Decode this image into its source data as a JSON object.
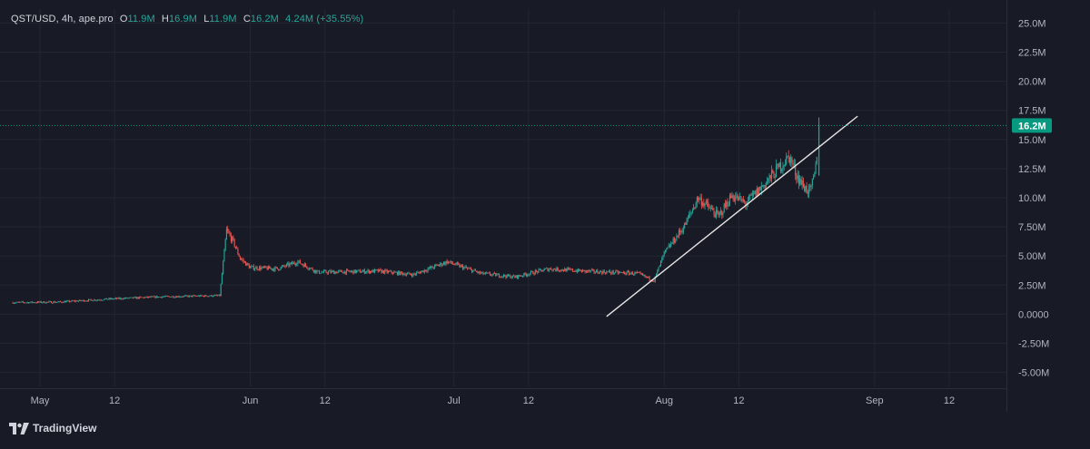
{
  "legend": {
    "symbol": "QST/USD, 4h, ape.pro",
    "open_label": "O",
    "open": "11.9M",
    "high_label": "H",
    "high": "16.9M",
    "low_label": "L",
    "low": "11.9M",
    "close_label": "C",
    "close": "16.2M",
    "change": "4.24M (+35.55%)"
  },
  "brand": {
    "name": "TradingView",
    "icon": "tradingview-logo-icon"
  },
  "colors": {
    "background": "#181b25",
    "up": "#26a69a",
    "down": "#ef5350",
    "grid": "#232632",
    "text": "#b2b5be",
    "trendline": "#e6e6e6",
    "last_price": "#089981"
  },
  "chart_data": {
    "type": "candlestick",
    "interval": "4h",
    "y_axis": {
      "ylim": [
        -6.2,
        26.2
      ],
      "ticks": [
        {
          "value": 25,
          "label": "25.0M"
        },
        {
          "value": 22.5,
          "label": "22.5M"
        },
        {
          "value": 20,
          "label": "20.0M"
        },
        {
          "value": 17.5,
          "label": "17.5M"
        },
        {
          "value": 15,
          "label": "15.0M"
        },
        {
          "value": 12.5,
          "label": "12.5M"
        },
        {
          "value": 10,
          "label": "10.0M"
        },
        {
          "value": 7.5,
          "label": "7.50M"
        },
        {
          "value": 5,
          "label": "5.00M"
        },
        {
          "value": 2.5,
          "label": "2.50M"
        },
        {
          "value": 0,
          "label": "0.0000"
        },
        {
          "value": -2.5,
          "label": "-2.50M"
        },
        {
          "value": -5,
          "label": "-5.00M"
        }
      ]
    },
    "x_axis": {
      "ticks": [
        {
          "day": 0,
          "label": "May"
        },
        {
          "day": 11,
          "label": "12"
        },
        {
          "day": 31,
          "label": "Jun"
        },
        {
          "day": 42,
          "label": "12"
        },
        {
          "day": 61,
          "label": "Jul"
        },
        {
          "day": 72,
          "label": "12"
        },
        {
          "day": 92,
          "label": "Aug"
        },
        {
          "day": 103,
          "label": "12"
        },
        {
          "day": 123,
          "label": "Sep"
        },
        {
          "day": 134,
          "label": "12"
        }
      ]
    },
    "last_price": {
      "value": 16.2,
      "label": "16.2M"
    },
    "trendline": {
      "from": {
        "day": 83.5,
        "value": -0.2
      },
      "to": {
        "day": 120.5,
        "value": 17.0
      }
    },
    "price_path": [
      [
        -4,
        1.0
      ],
      [
        3,
        1.05
      ],
      [
        10,
        1.3
      ],
      [
        18,
        1.5
      ],
      [
        26.5,
        1.6
      ],
      [
        27.5,
        7.2
      ],
      [
        28.5,
        6.2
      ],
      [
        29.5,
        4.8
      ],
      [
        31,
        4.0
      ],
      [
        35,
        3.9
      ],
      [
        38,
        4.5
      ],
      [
        41,
        3.6
      ],
      [
        50,
        3.7
      ],
      [
        55,
        3.4
      ],
      [
        60,
        4.5
      ],
      [
        65,
        3.5
      ],
      [
        70,
        3.2
      ],
      [
        75,
        3.9
      ],
      [
        80,
        3.7
      ],
      [
        88,
        3.5
      ],
      [
        90.5,
        2.9
      ],
      [
        92,
        5.2
      ],
      [
        95,
        7.6
      ],
      [
        97,
        10.0
      ],
      [
        100,
        8.4
      ],
      [
        102,
        10.2
      ],
      [
        104,
        9.5
      ],
      [
        107,
        11.3
      ],
      [
        109.5,
        13.0
      ],
      [
        110.5,
        13.5
      ],
      [
        111.5,
        12.0
      ],
      [
        112.5,
        11.0
      ],
      [
        113.5,
        10.5
      ],
      [
        114,
        11.5
      ],
      [
        114.4,
        12.8
      ],
      [
        114.6,
        15.0
      ],
      [
        114.8,
        16.2
      ]
    ],
    "final_candle": {
      "day": 114.8,
      "open": 11.9,
      "high": 16.9,
      "low": 11.9,
      "close": 16.2
    }
  }
}
